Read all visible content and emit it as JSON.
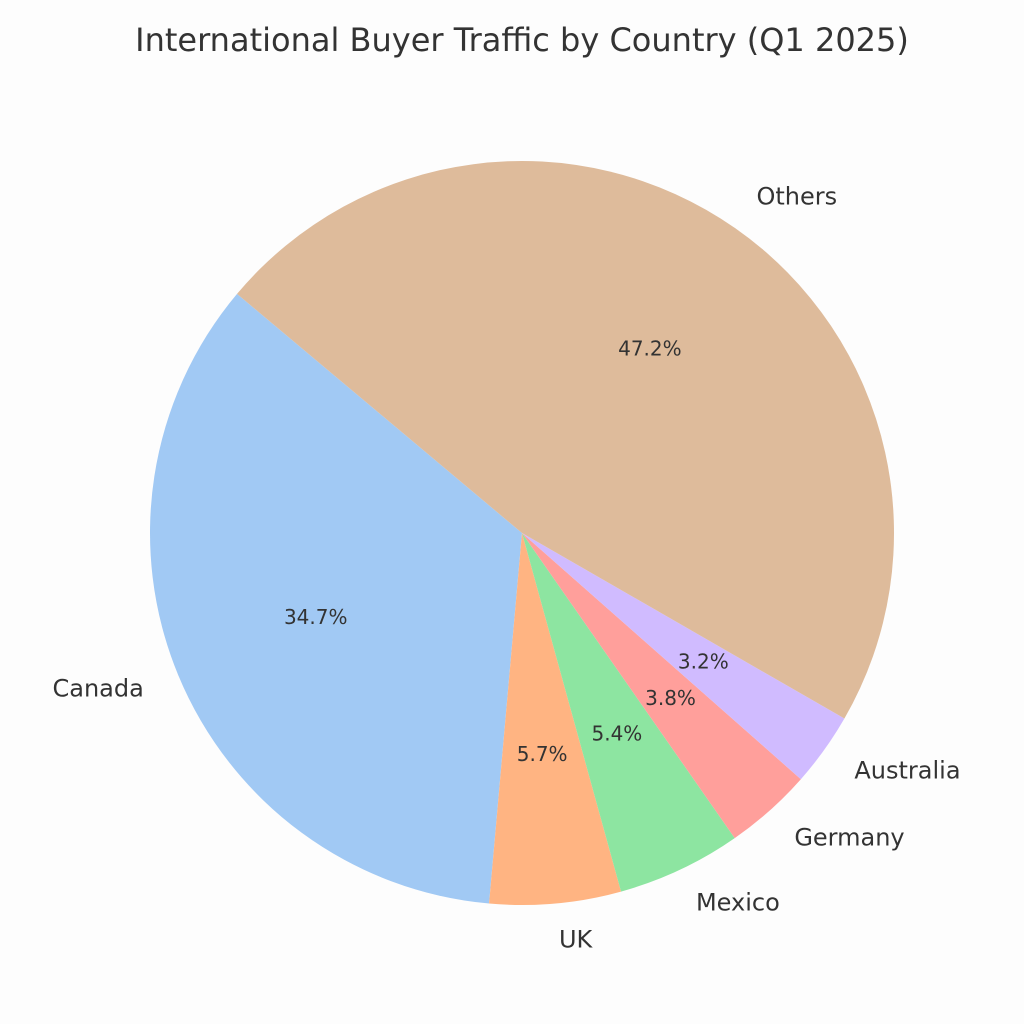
{
  "chart_data": {
    "type": "pie",
    "title": "International Buyer Traffic by Country (Q1 2025)",
    "categories": [
      "Canada",
      "UK",
      "Mexico",
      "Germany",
      "Australia",
      "Others"
    ],
    "values": [
      34.7,
      5.7,
      5.4,
      3.8,
      3.2,
      47.2
    ],
    "value_labels": [
      "34.7%",
      "5.7%",
      "5.4%",
      "3.8%",
      "3.2%",
      "47.2%"
    ],
    "colors": [
      "#a1c9f4",
      "#ffb482",
      "#8de5a1",
      "#ff9f9b",
      "#d0bbff",
      "#debb9b"
    ],
    "start_angle": 140
  }
}
